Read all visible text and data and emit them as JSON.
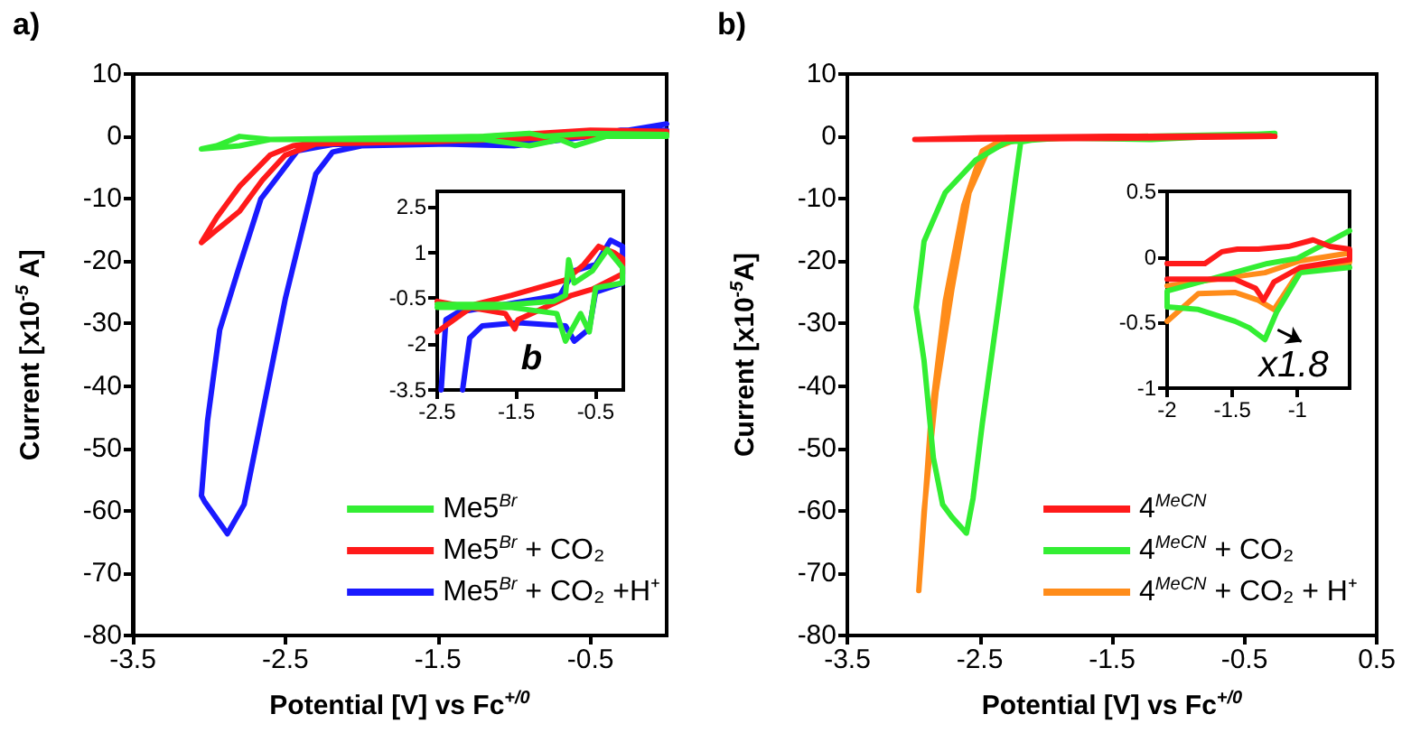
{
  "chart_data": [
    {
      "type": "line",
      "title": "a)",
      "xlabel": "Potential [V] vs Fc$^{+/0}$",
      "ylabel": "Current [x10$^{-5}$ A]",
      "xlim": [
        -3.5,
        0
      ],
      "xticks": [
        -3.5,
        -2.5,
        -1.5,
        -0.5
      ],
      "ylim": [
        -80,
        10
      ],
      "yticks": [
        10,
        0,
        -10,
        -20,
        -30,
        -40,
        -50,
        -60,
        -70,
        -80
      ],
      "grid": false,
      "legend": "bottom right",
      "marker": "none",
      "line_style": "solid",
      "series": [
        {
          "name": "Me5$^{Br}$",
          "color": "#33ee33",
          "x": [
            0,
            -0.5,
            -0.8,
            -0.9,
            -1.2,
            -2.6,
            -2.8,
            -3.05,
            -2.95,
            -2.8,
            -2.6,
            -1.2,
            -0.9,
            -0.7,
            -0.6,
            -0.4,
            0
          ],
          "values": [
            0.3,
            0.5,
            0,
            0.5,
            0,
            -0.5,
            -1.5,
            -2,
            -1.5,
            0,
            -0.5,
            -0.5,
            -1.5,
            -0.5,
            -1.5,
            0,
            0
          ]
        },
        {
          "name": "Me5$^{Br}$ + CO₂",
          "color": "#ff1a1a",
          "x": [
            0,
            -0.5,
            -1.5,
            -2.3,
            -2.5,
            -2.65,
            -2.8,
            -2.95,
            -3.05,
            -2.95,
            -2.8,
            -2.6,
            -2.45,
            -2.3,
            -1.5,
            -0.5,
            0
          ],
          "values": [
            0.5,
            0,
            -0.8,
            -1.2,
            -3,
            -7,
            -12,
            -15,
            -17,
            -13,
            -8,
            -3,
            -1.5,
            -1,
            -0.5,
            1,
            0.8
          ]
        },
        {
          "name": "Me5$^{Br}$ + CO₂ +H⁺",
          "color": "#1a1aff",
          "x": [
            0,
            -0.5,
            -1,
            -2,
            -2.19,
            -2.3,
            -2.5,
            -2.66,
            -2.77,
            -2.88,
            -3.03,
            -3.05,
            -3.01,
            -2.93,
            -2.81,
            -2.66,
            -2.42,
            -2.19,
            -1.5,
            -1,
            -0.5,
            -0.3,
            0
          ],
          "values": [
            2,
            0,
            -1,
            -1.5,
            -2.5,
            -6,
            -26,
            -45.6,
            -59,
            -63.7,
            -58.5,
            -57.6,
            -45.6,
            -31,
            -21.5,
            -10,
            -2.3,
            -1.3,
            -1.2,
            -1.5,
            0,
            1,
            1
          ]
        }
      ]
    },
    {
      "type": "line",
      "xlim": [
        -2.5,
        -0.15
      ],
      "xticks": [
        -2.5,
        -1.5,
        -0.5
      ],
      "ylim": [
        -3.5,
        3
      ],
      "yticks": [
        -3.5,
        -2,
        -0.5,
        1,
        2.5
      ],
      "grid": false,
      "legend": false,
      "marker": "none",
      "line_style": "solid",
      "annotations": [
        "b"
      ],
      "series": [
        {
          "color": "#33ee33",
          "x": [
            -2.5,
            -1.56,
            -1.03,
            -0.88,
            -0.84,
            -0.77,
            -0.54,
            -0.35,
            -0.16,
            -0.16,
            -0.5,
            -0.58,
            -0.69,
            -0.88,
            -0.99,
            -1.56,
            -2.5
          ],
          "values": [
            -0.7,
            -0.7,
            -0.6,
            -0.4,
            0.76,
            0,
            0.4,
            1.1,
            0.5,
            0,
            -0.16,
            -1.6,
            -1,
            -1.9,
            -1,
            -0.8,
            -0.8
          ]
        },
        {
          "color": "#ff1a1a",
          "x": [
            -2.5,
            -2.02,
            -1.56,
            -0.88,
            -0.65,
            -0.46,
            -0.27,
            -0.16,
            -0.16,
            -0.54,
            -0.8,
            -1.48,
            -1.52,
            -1.64,
            -2.09,
            -2.5
          ],
          "values": [
            -1.6,
            -0.7,
            -0.4,
            0.1,
            0.6,
            1.2,
            1,
            0.8,
            0.3,
            -0.2,
            -0.4,
            -1.2,
            -1.5,
            -1,
            -0.8,
            -0.6
          ]
        },
        {
          "color": "#1a1aff",
          "x": [
            -2.45,
            -2.39,
            -2.24,
            -1.18,
            -0.95,
            -0.77,
            -0.5,
            -0.31,
            -0.16,
            -0.16,
            -0.5,
            -0.58,
            -0.77,
            -0.88,
            -1.48,
            -1.93,
            -2.09,
            -2.18
          ],
          "values": [
            -3.5,
            -1.2,
            -0.96,
            -0.5,
            -0.4,
            0.4,
            0.6,
            1.4,
            1.2,
            0,
            -0.3,
            -1.5,
            -1.9,
            -1.4,
            -1.3,
            -1.4,
            -1.8,
            -3.5
          ]
        }
      ]
    },
    {
      "type": "line",
      "title": "b)",
      "xlabel": "Potential [V] vs Fc$^{+/0}$",
      "ylabel": "Current [x10$^{-5}$A]",
      "xlim": [
        -3.5,
        0.5
      ],
      "xticks": [
        -3.5,
        -2.5,
        -1.5,
        -0.5,
        0.5
      ],
      "ylim": [
        -80,
        10
      ],
      "yticks": [
        10,
        0,
        -10,
        -20,
        -30,
        -40,
        -50,
        -60,
        -70,
        -80
      ],
      "grid": false,
      "legend": "bottom right",
      "marker": "none",
      "line_style": "solid",
      "series": [
        {
          "name": "4$^{MeCN}$",
          "color": "#ff1a1a",
          "x": [
            -0.27,
            -1.5,
            -2.5,
            -2.99,
            -2.5,
            -1.5,
            -0.3
          ],
          "values": [
            0,
            -0.3,
            -0.4,
            -0.5,
            -0.2,
            0,
            0.1
          ]
        },
        {
          "name": "4$^{MeCN}$ + CO₂",
          "color": "#33ee33",
          "x": [
            -0.27,
            -1.2,
            -2.0,
            -2.19,
            -2.23,
            -2.35,
            -2.48,
            -2.55,
            -2.6,
            -2.71,
            -2.78,
            -2.85,
            -2.92,
            -2.98,
            -2.92,
            -2.76,
            -2.53,
            -2.3,
            -1.85,
            -0.27
          ],
          "values": [
            0.5,
            -0.5,
            -0.2,
            -0.9,
            -7,
            -26,
            -46,
            -58,
            -63.6,
            -61,
            -59,
            -51.5,
            -36,
            -27.4,
            -16.8,
            -9,
            -3.8,
            -0.9,
            -0.2,
            0.4
          ]
        },
        {
          "name": "4$^{MeCN}$ + CO₂ + H⁺",
          "color": "#ff8c1a",
          "x": [
            -0.27,
            -2.3,
            -2.48,
            -2.62,
            -2.76,
            -2.87,
            -2.96,
            -2.92,
            -2.83,
            -2.71,
            -2.58,
            -2.44,
            -2.21,
            -0.3
          ],
          "values": [
            0,
            -0.2,
            -2.3,
            -11,
            -26.4,
            -45.8,
            -72.8,
            -60,
            -41,
            -24.5,
            -9,
            -2.3,
            -0.4,
            0.2
          ]
        }
      ]
    },
    {
      "type": "line",
      "xlim": [
        -2,
        -0.6
      ],
      "xticks": [
        -2,
        -1.5,
        -1
      ],
      "ylim": [
        -1,
        0.5
      ],
      "yticks": [
        -1,
        -0.5,
        0,
        0.5
      ],
      "grid": false,
      "legend": false,
      "marker": "none",
      "line_style": "solid",
      "annotations": [
        {
          "text": "x1.8",
          "x": -1.25,
          "y": -0.63
        }
      ],
      "series": [
        {
          "color": "#ff1a1a",
          "x": [
            -2,
            -1.71,
            -1.58,
            -1.46,
            -1.3,
            -1.07,
            -0.88,
            -0.75,
            -0.6,
            -0.6,
            -0.98,
            -1.18,
            -1.26,
            -1.32,
            -1.48,
            -2
          ],
          "values": [
            -0.05,
            -0.05,
            0.04,
            0.06,
            0.06,
            0.08,
            0.13,
            0.08,
            0.06,
            -0.02,
            -0.08,
            -0.19,
            -0.33,
            -0.24,
            -0.17,
            -0.17
          ]
        },
        {
          "color": "#33ee33",
          "x": [
            -0.6,
            -1,
            -1.23,
            -2,
            -2,
            -1.76,
            -1.48,
            -1.37,
            -1.25,
            -1.16,
            -0.98,
            -0.6
          ],
          "values": [
            0.2,
            -0.01,
            -0.05,
            -0.26,
            -0.38,
            -0.4,
            -0.49,
            -0.54,
            -0.63,
            -0.42,
            -0.12,
            -0.08
          ]
        },
        {
          "color": "#ff8c1a",
          "x": [
            -2,
            -1.25,
            -0.98,
            -0.6,
            -0.6,
            -0.98,
            -1.18,
            -1.3,
            -1.48,
            -1.76,
            -2
          ],
          "values": [
            -0.22,
            -0.12,
            -0.03,
            0.03,
            -0.04,
            -0.1,
            -0.4,
            -0.33,
            -0.27,
            -0.28,
            -0.49
          ]
        }
      ]
    }
  ]
}
